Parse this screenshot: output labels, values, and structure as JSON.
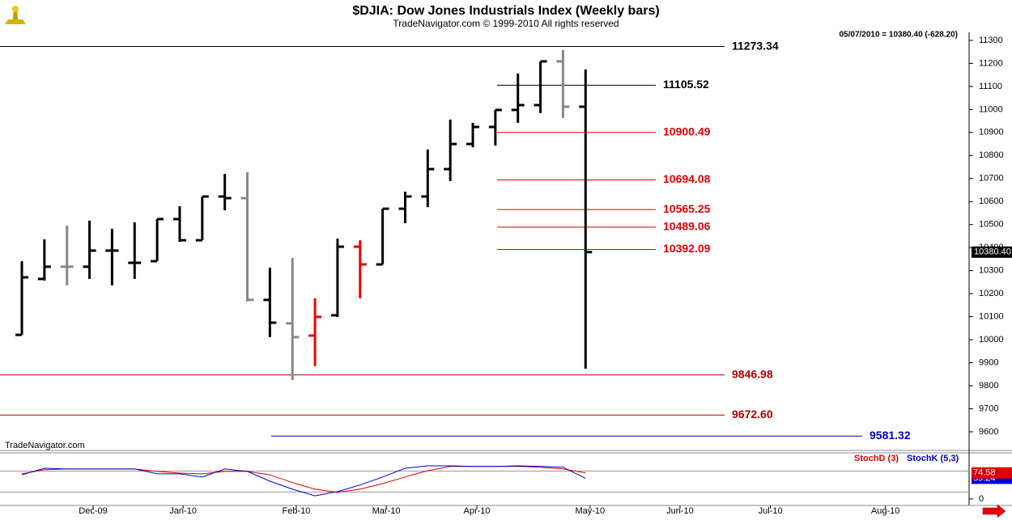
{
  "chart_data": [
    {
      "type": "ohlc",
      "title": "$DJIA:  Dow Jones Industrials Index  (Weekly bars)",
      "subtitle": "TradeNavigator.com © 1999-2010 All rights reserved",
      "header_note": "05/07/2010 = 10380.40 (-628.20)",
      "watermark": "TradeNavigator.com",
      "x": [
        0,
        1,
        2,
        3,
        4,
        5,
        6,
        7,
        8,
        9,
        10,
        11,
        12,
        13,
        14,
        15,
        16,
        17,
        18,
        19,
        20,
        21,
        22,
        23,
        24,
        25
      ],
      "xlim": [
        -0.97,
        42.01
      ],
      "xticks": [
        {
          "value": 3.16,
          "label": "Dec-09"
        },
        {
          "value": 7.15,
          "label": "Jan-10"
        },
        {
          "value": 12.17,
          "label": "Feb-10"
        },
        {
          "value": 16.16,
          "label": "Mar-10"
        },
        {
          "value": 20.18,
          "label": "Apr-10"
        },
        {
          "value": 25.2,
          "label": "May-10"
        },
        {
          "value": 29.19,
          "label": "Jun-10"
        },
        {
          "value": 33.2,
          "label": "Jul-10"
        },
        {
          "value": 38.3,
          "label": "Aug-10"
        }
      ],
      "open": [
        10021,
        10264,
        10317,
        10317,
        10387,
        10334,
        10341,
        10524,
        10432,
        10622,
        10615,
        10173,
        10071,
        10018,
        10106,
        10404,
        10327,
        10569,
        10622,
        10741,
        10850,
        10924,
        10998,
        11019,
        11209,
        11012
      ],
      "high": [
        10341,
        10436,
        10496,
        10517,
        10482,
        10510,
        10524,
        10580,
        10622,
        10720,
        10727,
        10313,
        10355,
        10180,
        10439,
        10432,
        10569,
        10643,
        10826,
        10956,
        10942,
        10998,
        11156,
        11209,
        11258,
        11174
      ],
      "low": [
        10021,
        10257,
        10236,
        10264,
        10236,
        10264,
        10341,
        10425,
        10432,
        10562,
        10166,
        10011,
        9825,
        9885,
        10099,
        10180,
        10327,
        10506,
        10576,
        10689,
        10836,
        10843,
        10942,
        10984,
        10963,
        9874
      ],
      "close": [
        10271,
        10317,
        10317,
        10387,
        10387,
        10334,
        10524,
        10432,
        10622,
        10615,
        10173,
        10074,
        10011,
        10099,
        10404,
        10327,
        10569,
        10622,
        10741,
        10850,
        10924,
        10998,
        11019,
        11209,
        11012,
        10380.4
      ],
      "colors": [
        "#000000",
        "#000000",
        "#888888",
        "#000000",
        "#000000",
        "#000000",
        "#000000",
        "#000000",
        "#000000",
        "#000000",
        "#888888",
        "#000000",
        "#888888",
        "#ee0000",
        "#000000",
        "#ee0000",
        "#000000",
        "#000000",
        "#000000",
        "#000000",
        "#000000",
        "#000000",
        "#000000",
        "#000000",
        "#888888",
        "#000000"
      ],
      "ylim": [
        9519,
        11335
      ],
      "yticks": [
        9600,
        9700,
        9800,
        9900,
        10000,
        10100,
        10200,
        10300,
        10400,
        10500,
        10600,
        10700,
        10800,
        10900,
        11000,
        11100,
        11200,
        11300
      ],
      "last_label": {
        "value": 10380.4,
        "label": "10380.40"
      },
      "levels": [
        {
          "value": 11273.34,
          "label": "11273.34",
          "color": "#000000"
        },
        {
          "value": 11105.52,
          "label": "11105.52",
          "color": "#000000"
        },
        {
          "value": 10900.49,
          "label": "10900.49",
          "color": "#dd0000"
        },
        {
          "value": 10694.08,
          "label": "10694.08",
          "color": "#dd0000"
        },
        {
          "value": 10565.25,
          "label": "10565.25",
          "color": "#dd0000"
        },
        {
          "value": 10489.06,
          "label": "10489.06",
          "color": "#dd0000"
        },
        {
          "value": 10392.09,
          "label": "10392.09",
          "color": "#dd0000"
        },
        {
          "value": 9846.98,
          "label": "9846.98",
          "color": "#b00000"
        },
        {
          "value": 9672.6,
          "label": "9672.60",
          "color": "#b00000"
        },
        {
          "value": 9581.32,
          "label": "9581.32",
          "color": "#0000cc"
        }
      ]
    },
    {
      "type": "line",
      "x": [
        0,
        1,
        2,
        3,
        4,
        5,
        6,
        7,
        8,
        9,
        10,
        11,
        12,
        13,
        14,
        15,
        16,
        17,
        18,
        19,
        20,
        21,
        22,
        23,
        24,
        25
      ],
      "xlim": [
        -0.97,
        42.01
      ],
      "series": [
        {
          "name": "StochD (3)",
          "color": "#dd0000",
          "values": [
            72,
            84,
            86,
            86,
            86,
            86,
            79,
            74,
            72,
            79,
            79,
            69,
            47,
            28,
            19,
            28,
            44,
            63,
            81,
            93,
            93,
            93,
            93,
            91,
            86,
            74.58
          ]
        },
        {
          "name": "StochK (5,3)",
          "color": "#0000cc",
          "values": [
            69,
            88,
            86,
            86,
            86,
            86,
            72,
            72,
            63,
            86,
            79,
            51,
            28,
            9,
            21,
            40,
            63,
            88,
            95,
            95,
            93,
            93,
            95,
            93,
            91,
            59.24
          ]
        }
      ],
      "ylim": [
        -18.6,
        132
      ],
      "yticks": [
        0
      ],
      "levels": [
        20,
        80
      ]
    }
  ]
}
